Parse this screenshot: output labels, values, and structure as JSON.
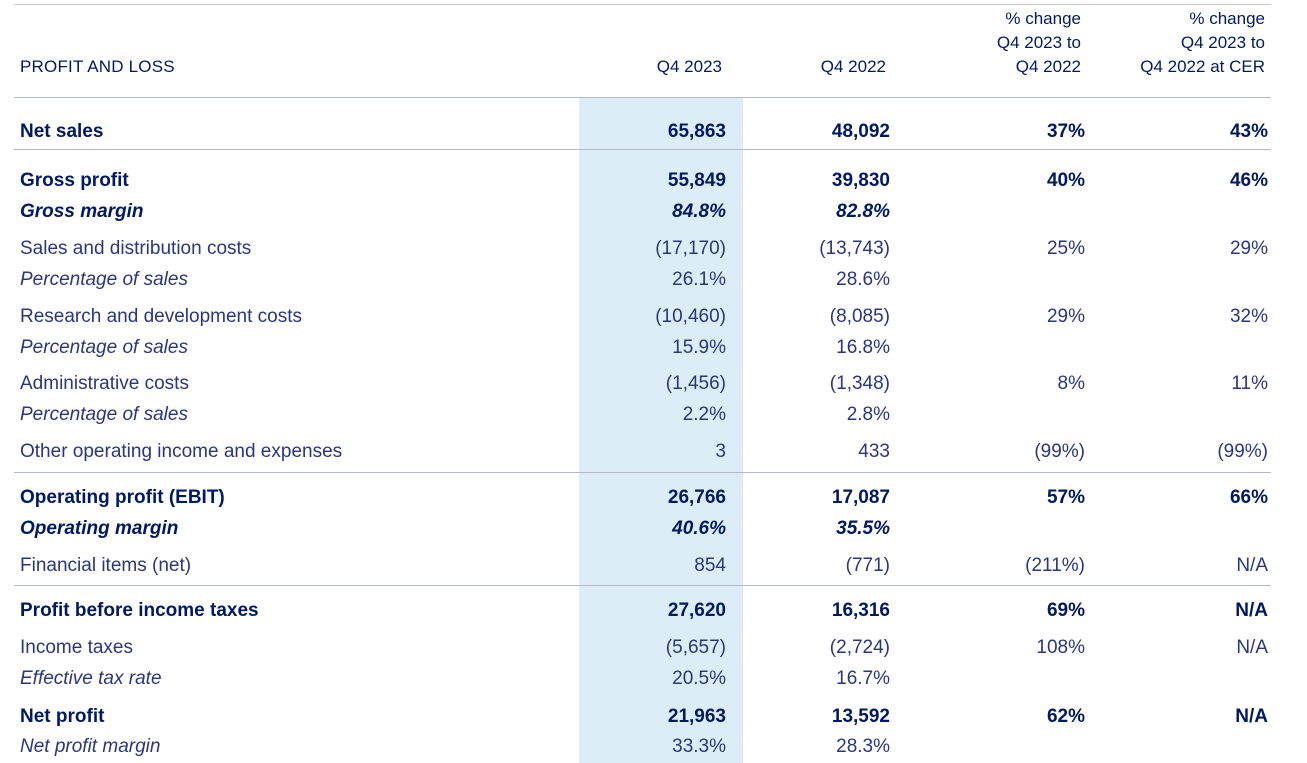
{
  "header": {
    "title": "PROFIT AND LOSS",
    "col1": "Q4 2023",
    "col2": "Q4 2022",
    "col3": "% change\nQ4 2023 to\nQ4 2022",
    "col4": "% change\nQ4 2023 to\nQ4 2022 at CER"
  },
  "rows": [
    {
      "label": "Net sales",
      "q4_2023": "65,863",
      "q4_2022": "48,092",
      "change": "37%",
      "change_cer": "43%",
      "style": "bold"
    },
    {
      "label": "Gross profit",
      "q4_2023": "55,849",
      "q4_2022": "39,830",
      "change": "40%",
      "change_cer": "46%",
      "style": "bold"
    },
    {
      "label": "Gross margin",
      "q4_2023": "84.8%",
      "q4_2022": "82.8%",
      "change": "",
      "change_cer": "",
      "style": "bold-italic"
    },
    {
      "label": "Sales and distribution costs",
      "q4_2023": "(17,170)",
      "q4_2022": "(13,743)",
      "change": "25%",
      "change_cer": "29%",
      "style": "plain"
    },
    {
      "label": "Percentage of sales",
      "q4_2023": "26.1%",
      "q4_2022": "28.6%",
      "change": "",
      "change_cer": "",
      "style": "italic"
    },
    {
      "label": "Research and development costs",
      "q4_2023": "(10,460)",
      "q4_2022": "(8,085)",
      "change": "29%",
      "change_cer": "32%",
      "style": "plain"
    },
    {
      "label": "Percentage of sales",
      "q4_2023": "15.9%",
      "q4_2022": "16.8%",
      "change": "",
      "change_cer": "",
      "style": "italic"
    },
    {
      "label": "Administrative costs",
      "q4_2023": "(1,456)",
      "q4_2022": "(1,348)",
      "change": "8%",
      "change_cer": "11%",
      "style": "plain"
    },
    {
      "label": "Percentage of sales",
      "q4_2023": "2.2%",
      "q4_2022": "2.8%",
      "change": "",
      "change_cer": "",
      "style": "italic"
    },
    {
      "label": "Other operating income and expenses",
      "q4_2023": "3",
      "q4_2022": "433",
      "change": "(99%)",
      "change_cer": "(99%)",
      "style": "plain"
    },
    {
      "label": "Operating profit (EBIT)",
      "q4_2023": "26,766",
      "q4_2022": "17,087",
      "change": "57%",
      "change_cer": "66%",
      "style": "bold"
    },
    {
      "label": "Operating margin",
      "q4_2023": "40.6%",
      "q4_2022": "35.5%",
      "change": "",
      "change_cer": "",
      "style": "bold-italic"
    },
    {
      "label": "Financial items (net)",
      "q4_2023": "854",
      "q4_2022": "(771)",
      "change": "(211%)",
      "change_cer": "N/A",
      "style": "plain"
    },
    {
      "label": "Profit before income taxes",
      "q4_2023": "27,620",
      "q4_2022": "16,316",
      "change": "69%",
      "change_cer": "N/A",
      "style": "bold"
    },
    {
      "label": "Income taxes",
      "q4_2023": "(5,657)",
      "q4_2022": "(2,724)",
      "change": "108%",
      "change_cer": "N/A",
      "style": "plain"
    },
    {
      "label": "Effective tax rate",
      "q4_2023": "20.5%",
      "q4_2022": "16.7%",
      "change": "",
      "change_cer": "",
      "style": "italic"
    },
    {
      "label": "Net profit",
      "q4_2023": "21,963",
      "q4_2022": "13,592",
      "change": "62%",
      "change_cer": "N/A",
      "style": "bold"
    },
    {
      "label": "Net profit margin",
      "q4_2023": "33.3%",
      "q4_2022": "28.3%",
      "change": "",
      "change_cer": "",
      "style": "italic"
    }
  ]
}
